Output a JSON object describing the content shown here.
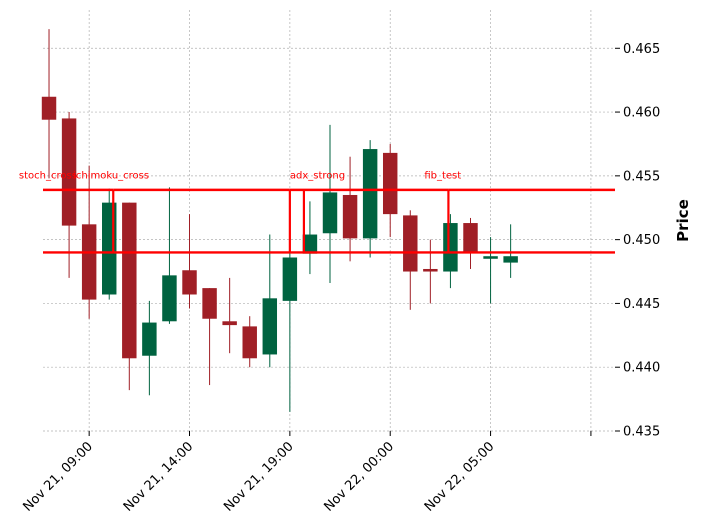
{
  "chart_data": {
    "type": "candlestick",
    "ylabel": "Price",
    "ylim": [
      0.435,
      0.468
    ],
    "y_ticks": [
      0.435,
      0.44,
      0.445,
      0.45,
      0.455,
      0.46,
      0.465
    ],
    "y_tick_labels": [
      "0.435",
      "0.440",
      "0.445",
      "0.450",
      "0.455",
      "0.460",
      "0.465"
    ],
    "x_ticks": [
      2,
      7,
      12,
      17,
      22,
      27
    ],
    "x_tick_labels": [
      "Nov 21, 09:00",
      "Nov 21, 14:00",
      "Nov 21, 19:00",
      "Nov 22, 00:00",
      "Nov 22, 05:00",
      ""
    ],
    "xlim": [
      -0.3,
      28.2
    ],
    "grid": true,
    "colors": {
      "up": "#006340",
      "down": "#a01f26",
      "level_line": "#ff0000",
      "annotation": "#ff0000",
      "grid": "#b0b0b0"
    },
    "candles": [
      {
        "o": 0.4612,
        "h": 0.4665,
        "l": 0.4548,
        "c": 0.4594
      },
      {
        "o": 0.4595,
        "h": 0.46,
        "l": 0.447,
        "c": 0.4511
      },
      {
        "o": 0.4512,
        "h": 0.4558,
        "l": 0.4438,
        "c": 0.4453
      },
      {
        "o": 0.4457,
        "h": 0.454,
        "l": 0.4453,
        "c": 0.4529
      },
      {
        "o": 0.4529,
        "h": 0.4529,
        "l": 0.4382,
        "c": 0.4407
      },
      {
        "o": 0.4409,
        "h": 0.4452,
        "l": 0.4378,
        "c": 0.4435
      },
      {
        "o": 0.4436,
        "h": 0.4541,
        "l": 0.4434,
        "c": 0.4472
      },
      {
        "o": 0.4476,
        "h": 0.452,
        "l": 0.4446,
        "c": 0.4457
      },
      {
        "o": 0.4462,
        "h": 0.4462,
        "l": 0.4386,
        "c": 0.4438
      },
      {
        "o": 0.4436,
        "h": 0.447,
        "l": 0.4411,
        "c": 0.4433
      },
      {
        "o": 0.4432,
        "h": 0.444,
        "l": 0.44,
        "c": 0.4407
      },
      {
        "o": 0.441,
        "h": 0.4504,
        "l": 0.44,
        "c": 0.4454
      },
      {
        "o": 0.4452,
        "h": 0.4495,
        "l": 0.4365,
        "c": 0.4486
      },
      {
        "o": 0.4489,
        "h": 0.453,
        "l": 0.4473,
        "c": 0.4504
      },
      {
        "o": 0.4505,
        "h": 0.459,
        "l": 0.4466,
        "c": 0.4537
      },
      {
        "o": 0.4535,
        "h": 0.4565,
        "l": 0.4483,
        "c": 0.4501
      },
      {
        "o": 0.4501,
        "h": 0.4578,
        "l": 0.4486,
        "c": 0.4571
      },
      {
        "o": 0.4568,
        "h": 0.4575,
        "l": 0.4502,
        "c": 0.452
      },
      {
        "o": 0.4519,
        "h": 0.4523,
        "l": 0.4445,
        "c": 0.4475
      },
      {
        "o": 0.4477,
        "h": 0.45,
        "l": 0.445,
        "c": 0.4475
      },
      {
        "o": 0.4475,
        "h": 0.452,
        "l": 0.4462,
        "c": 0.4513
      },
      {
        "o": 0.4513,
        "h": 0.4517,
        "l": 0.4477,
        "c": 0.449
      },
      {
        "o": 0.4485,
        "h": 0.4502,
        "l": 0.445,
        "c": 0.4487
      },
      {
        "o": 0.4482,
        "h": 0.4512,
        "l": 0.447,
        "c": 0.4487
      }
    ],
    "levels": [
      {
        "y1": 0.449,
        "y2": 0.4539,
        "x_start": -0.3,
        "x_end": 3.2
      },
      {
        "y1": 0.449,
        "y2": 0.4539,
        "x_start": 3.2,
        "x_end": 12.0
      },
      {
        "y1": 0.449,
        "y2": 0.4539,
        "x_start": 12.0,
        "x_end": 19.9
      },
      {
        "y1": 0.449,
        "y2": 0.4539,
        "x_start": 19.9,
        "x_end": 28.2
      }
    ],
    "vertical_markers": [
      {
        "x": 3.2,
        "y1": 0.449,
        "y2": 0.4539
      },
      {
        "x": 12.0,
        "y1": 0.449,
        "y2": 0.4539
      },
      {
        "x": 12.7,
        "y1": 0.449,
        "y2": 0.4539
      },
      {
        "x": 19.9,
        "y1": 0.449,
        "y2": 0.4539
      }
    ],
    "annotations": [
      {
        "text": "stoch_cross",
        "x": -1.5,
        "y": 0.4548
      },
      {
        "text": "ichimoku_cross",
        "x": 1.2,
        "y": 0.4548
      },
      {
        "text": "adx_strong",
        "x": 12.0,
        "y": 0.4548
      },
      {
        "text": "fib_test",
        "x": 18.7,
        "y": 0.4548
      }
    ]
  }
}
